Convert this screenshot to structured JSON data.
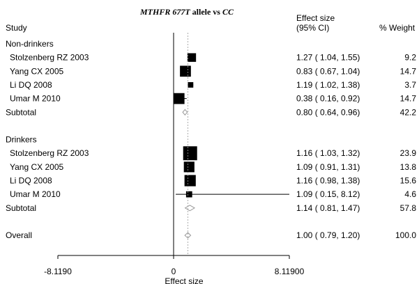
{
  "chart_data": {
    "type": "forest",
    "title": {
      "italic_gene": "MTHFR 677T",
      "middle": " allele vs ",
      "italic_ref": "CC"
    },
    "headers": {
      "study": "Study",
      "effect_line1": "Effect size",
      "effect_line2": "(95% CI)",
      "weight": "% Weight"
    },
    "xlabel": "Effect size",
    "xticks": [
      "-8.1190",
      "0",
      "8.11900"
    ],
    "xtick_values": [
      -8.119,
      0,
      8.119
    ],
    "xlim": [
      -8.119,
      8.119
    ],
    "null_line": 0,
    "overall_line": 1.0,
    "rows": [
      {
        "kind": "group",
        "label": "Non-drinkers"
      },
      {
        "kind": "study",
        "label": "Stolzenberg RZ 2003",
        "es": 1.27,
        "lo": 1.04,
        "hi": 1.55,
        "ci_text": "1.27 ( 1.04, 1.55)",
        "weight": 9.2,
        "weight_text": "9.2"
      },
      {
        "kind": "study",
        "label": "Yang CX 2005",
        "es": 0.83,
        "lo": 0.67,
        "hi": 1.04,
        "ci_text": "0.83 ( 0.67, 1.04)",
        "weight": 14.7,
        "weight_text": "14.7"
      },
      {
        "kind": "study",
        "label": "Li DQ 2008",
        "es": 1.19,
        "lo": 1.02,
        "hi": 1.38,
        "ci_text": "1.19 ( 1.02, 1.38)",
        "weight": 3.7,
        "weight_text": "3.7"
      },
      {
        "kind": "study",
        "label": "Umar M 2010",
        "es": 0.38,
        "lo": 0.16,
        "hi": 0.92,
        "ci_text": "0.38 ( 0.16, 0.92)",
        "weight": 14.7,
        "weight_text": "14.7"
      },
      {
        "kind": "subtotal",
        "label": "Subtotal",
        "es": 0.8,
        "lo": 0.64,
        "hi": 0.96,
        "ci_text": "0.80 ( 0.64, 0.96)",
        "weight_text": "42.2"
      },
      {
        "kind": "blank"
      },
      {
        "kind": "group",
        "label": "Drinkers"
      },
      {
        "kind": "study",
        "label": "Stolzenberg RZ 2003",
        "es": 1.16,
        "lo": 1.03,
        "hi": 1.32,
        "ci_text": "1.16 ( 1.03, 1.32)",
        "weight": 23.9,
        "weight_text": "23.9"
      },
      {
        "kind": "study",
        "label": "Yang CX 2005",
        "es": 1.09,
        "lo": 0.91,
        "hi": 1.31,
        "ci_text": "1.09 ( 0.91, 1.31)",
        "weight": 13.8,
        "weight_text": "13.8"
      },
      {
        "kind": "study",
        "label": "Li DQ 2008",
        "es": 1.16,
        "lo": 0.98,
        "hi": 1.38,
        "ci_text": "1.16 ( 0.98, 1.38)",
        "weight": 15.6,
        "weight_text": "15.6"
      },
      {
        "kind": "study",
        "label": "Umar M 2010",
        "es": 1.09,
        "lo": 0.15,
        "hi": 8.12,
        "ci_text": "1.09 ( 0.15, 8.12)",
        "weight": 4.6,
        "weight_text": "4.6"
      },
      {
        "kind": "subtotal",
        "label": "Subtotal",
        "es": 1.14,
        "lo": 0.81,
        "hi": 1.47,
        "ci_text": "1.14 ( 0.81, 1.47)",
        "weight_text": "57.8"
      },
      {
        "kind": "blank"
      },
      {
        "kind": "overall",
        "label": "Overall",
        "es": 1.0,
        "lo": 0.79,
        "hi": 1.2,
        "ci_text": "1.00 ( 0.79, 1.20)",
        "weight_text": "100.0"
      }
    ]
  }
}
